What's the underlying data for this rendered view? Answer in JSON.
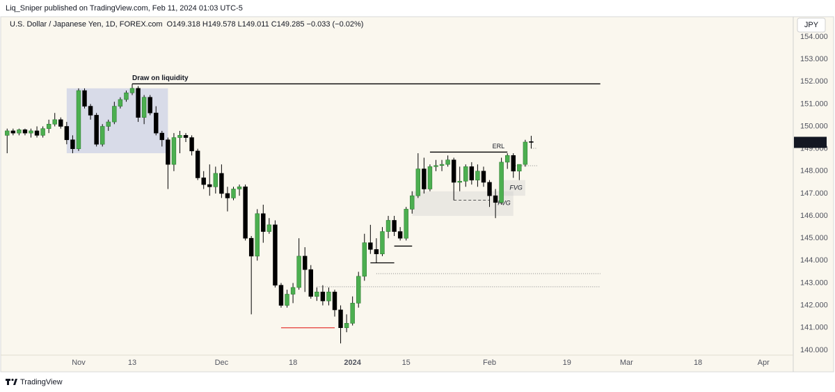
{
  "header": {
    "publisher": "Liq_Sniper published on TradingView.com, Feb 11, 2024 01:03 UTC-5",
    "footer": "TradingView"
  },
  "chart_data": {
    "type": "candlestick",
    "title": "U.S. Dollar / Japanese Yen, 1D, FOREX.com",
    "subtitle": "O149.318 H149.578 L149.011 C149.285 −0.033 (−0.02%)",
    "currency": "JPY",
    "up_color": "#4caf50",
    "down_color": "#000000",
    "open": [
      149.6,
      149.8,
      149.7,
      149.85,
      149.7,
      149.8,
      149.6,
      149.9,
      150.1,
      150.3,
      150.0,
      149.4,
      149.0,
      151.6,
      150.9,
      150.5,
      149.2,
      150.0,
      150.2,
      150.9,
      151.2,
      151.5,
      151.7,
      150.4,
      151.3,
      150.6,
      149.7,
      149.4,
      148.3,
      149.5,
      149.6,
      149.5,
      148.9,
      147.7,
      147.4,
      147.3,
      147.9,
      147.0,
      146.8,
      147.2,
      147.3,
      145.0,
      144.2,
      146.1,
      145.3,
      145.6,
      142.9,
      142.0,
      142.5,
      142.8,
      144.2,
      143.6,
      142.4,
      142.6,
      142.2,
      142.6,
      141.8,
      141.0,
      141.2,
      142.1,
      143.3,
      144.8,
      144.5,
      144.3,
      145.3,
      145.8,
      145.3,
      145.0,
      146.3,
      146.9,
      148.1,
      147.2,
      148.2,
      148.25,
      148.3,
      148.5,
      147.5,
      147.55,
      148.2,
      147.6,
      148.0,
      147.5,
      146.9,
      146.6,
      148.4,
      148.7,
      148.0,
      148.3,
      149.318
    ],
    "high": [
      149.9,
      149.9,
      149.9,
      149.9,
      149.9,
      150.0,
      150.0,
      150.3,
      150.6,
      150.4,
      150.2,
      149.6,
      151.7,
      151.7,
      151.0,
      150.6,
      150.1,
      150.3,
      151.1,
      151.3,
      151.6,
      151.9,
      151.8,
      151.4,
      151.4,
      150.9,
      149.8,
      149.5,
      149.7,
      149.8,
      149.7,
      149.6,
      149.0,
      148.0,
      148.3,
      148.2,
      148.3,
      147.3,
      147.3,
      147.4,
      147.4,
      145.1,
      146.3,
      146.5,
      145.9,
      145.8,
      143.0,
      142.7,
      143.0,
      145.0,
      144.6,
      143.8,
      142.8,
      142.9,
      142.8,
      142.7,
      142.0,
      141.6,
      142.4,
      143.5,
      145.2,
      145.6,
      145.0,
      145.5,
      146.0,
      146.0,
      145.5,
      146.4,
      147.1,
      148.8,
      148.6,
      148.3,
      148.5,
      148.5,
      148.7,
      148.6,
      148.2,
      148.3,
      148.4,
      148.3,
      148.2,
      147.6,
      147.2,
      148.6,
      148.8,
      148.8,
      148.3,
      149.4,
      149.578
    ],
    "low": [
      148.8,
      149.6,
      149.6,
      149.6,
      149.5,
      149.5,
      149.5,
      149.7,
      150.0,
      149.9,
      149.2,
      148.8,
      148.9,
      150.8,
      150.3,
      149.1,
      149.1,
      149.8,
      150.1,
      150.8,
      151.1,
      151.4,
      150.2,
      150.1,
      150.5,
      149.6,
      149.1,
      147.2,
      148.0,
      148.8,
      149.3,
      148.7,
      147.6,
      147.2,
      146.9,
      147.0,
      146.8,
      146.2,
      146.7,
      146.9,
      144.9,
      141.6,
      144.0,
      144.8,
      145.2,
      142.8,
      141.9,
      141.9,
      142.1,
      142.7,
      142.6,
      142.3,
      142.2,
      142.0,
      142.0,
      141.5,
      140.3,
      140.8,
      141.1,
      141.9,
      143.1,
      144.3,
      143.9,
      144.2,
      145.0,
      145.1,
      144.9,
      144.9,
      146.1,
      146.8,
      147.0,
      147.1,
      148.0,
      148.0,
      148.2,
      146.7,
      147.1,
      147.3,
      147.4,
      147.3,
      147.3,
      146.4,
      145.9,
      146.5,
      148.1,
      147.7,
      147.6,
      148.2,
      149.011
    ],
    "close": [
      149.8,
      149.7,
      149.85,
      149.7,
      149.8,
      149.6,
      149.9,
      150.1,
      150.3,
      150.0,
      149.4,
      149.0,
      151.6,
      150.9,
      150.5,
      149.2,
      150.0,
      150.2,
      150.9,
      151.2,
      151.5,
      151.7,
      150.4,
      151.3,
      150.6,
      149.7,
      149.4,
      148.3,
      149.5,
      149.6,
      149.5,
      148.9,
      147.7,
      147.4,
      147.3,
      147.9,
      147.0,
      146.8,
      147.2,
      147.3,
      145.0,
      144.2,
      146.1,
      145.3,
      145.6,
      142.9,
      142.0,
      142.5,
      142.8,
      144.2,
      143.6,
      142.4,
      142.6,
      142.2,
      142.6,
      141.8,
      141.0,
      141.2,
      142.1,
      143.3,
      144.8,
      144.5,
      144.3,
      145.3,
      145.8,
      145.3,
      145.0,
      146.3,
      146.9,
      148.1,
      147.2,
      148.2,
      148.25,
      148.3,
      148.5,
      147.5,
      147.55,
      148.2,
      147.6,
      148.0,
      147.5,
      146.9,
      146.6,
      148.4,
      148.7,
      148.0,
      148.3,
      149.3,
      149.285
    ],
    "xlim": [
      -1.2,
      132
    ],
    "xticks": [
      {
        "value": 12,
        "label": "Nov"
      },
      {
        "value": 21,
        "label": "13"
      },
      {
        "value": 36,
        "label": "Dec"
      },
      {
        "value": 48,
        "label": "18"
      },
      {
        "value": 58,
        "label": "2024",
        "bold": true
      },
      {
        "value": 67,
        "label": "15"
      },
      {
        "value": 81,
        "label": "Feb"
      },
      {
        "value": 94,
        "label": "19"
      },
      {
        "value": 104,
        "label": "Mar"
      },
      {
        "value": 116,
        "label": "18"
      },
      {
        "value": 127,
        "label": "Apr"
      }
    ],
    "ylim": [
      139.56,
      154.59
    ],
    "yticks": [
      {
        "value": 140,
        "label": "140.000"
      },
      {
        "value": 141,
        "label": "141.000"
      },
      {
        "value": 142,
        "label": "142.000"
      },
      {
        "value": 143,
        "label": "143.000"
      },
      {
        "value": 144,
        "label": "144.000"
      },
      {
        "value": 145,
        "label": "145.000"
      },
      {
        "value": 146,
        "label": "146.000"
      },
      {
        "value": 147,
        "label": "147.000"
      },
      {
        "value": 148,
        "label": "148.000"
      },
      {
        "value": 149,
        "label": "149.000"
      },
      {
        "value": 150,
        "label": "150.000"
      },
      {
        "value": 151,
        "label": "151.000"
      },
      {
        "value": 152,
        "label": "152.000"
      },
      {
        "value": 153,
        "label": "153.000"
      },
      {
        "value": 154,
        "label": "154.000"
      }
    ],
    "grid": false,
    "zones": [
      {
        "from": 10,
        "to": 27,
        "low": 148.8,
        "high": 151.7,
        "color": "rgba(170,182,225,0.42)"
      },
      {
        "from": 68,
        "to": 85,
        "low": 146.0,
        "high": 147.1,
        "color": "rgba(200,200,200,0.3)",
        "label": "FVG"
      },
      {
        "from": 83,
        "to": 87,
        "low": 146.9,
        "high": 147.6,
        "color": "rgba(200,200,200,0.3)",
        "label": "FVG"
      }
    ],
    "levels": [
      {
        "value": 151.9,
        "from": 21,
        "to": 99.6,
        "style": "solid",
        "color": "#000000",
        "label": "Draw on liquidity",
        "label_at": "start"
      },
      {
        "value": 148.85,
        "from": 71,
        "to": 84,
        "style": "solid",
        "color": "#000000",
        "label": "ERL",
        "label_at": "end"
      },
      {
        "value": 141.0,
        "from": 46,
        "to": 55,
        "style": "solid",
        "color": "#e53935"
      },
      {
        "value": 143.42,
        "from": 62,
        "to": 99.6,
        "style": "dotted",
        "color": "#888888"
      },
      {
        "value": 142.83,
        "from": 52,
        "to": 99.6,
        "style": "dotted",
        "color": "#888888"
      },
      {
        "value": 149.02,
        "from": 88,
        "to": 88.9,
        "style": "dotted",
        "color": "#888888"
      },
      {
        "value": 148.24,
        "from": 85,
        "to": 89,
        "style": "dotted",
        "color": "#888888"
      },
      {
        "value": 144.65,
        "from": 65,
        "to": 68,
        "style": "solid",
        "color": "#000000"
      },
      {
        "value": 143.9,
        "from": 61,
        "to": 65,
        "style": "solid",
        "color": "#000000"
      },
      {
        "value": 146.7,
        "from": 75,
        "to": 81,
        "style": "dashed",
        "color": "#555555"
      }
    ]
  }
}
